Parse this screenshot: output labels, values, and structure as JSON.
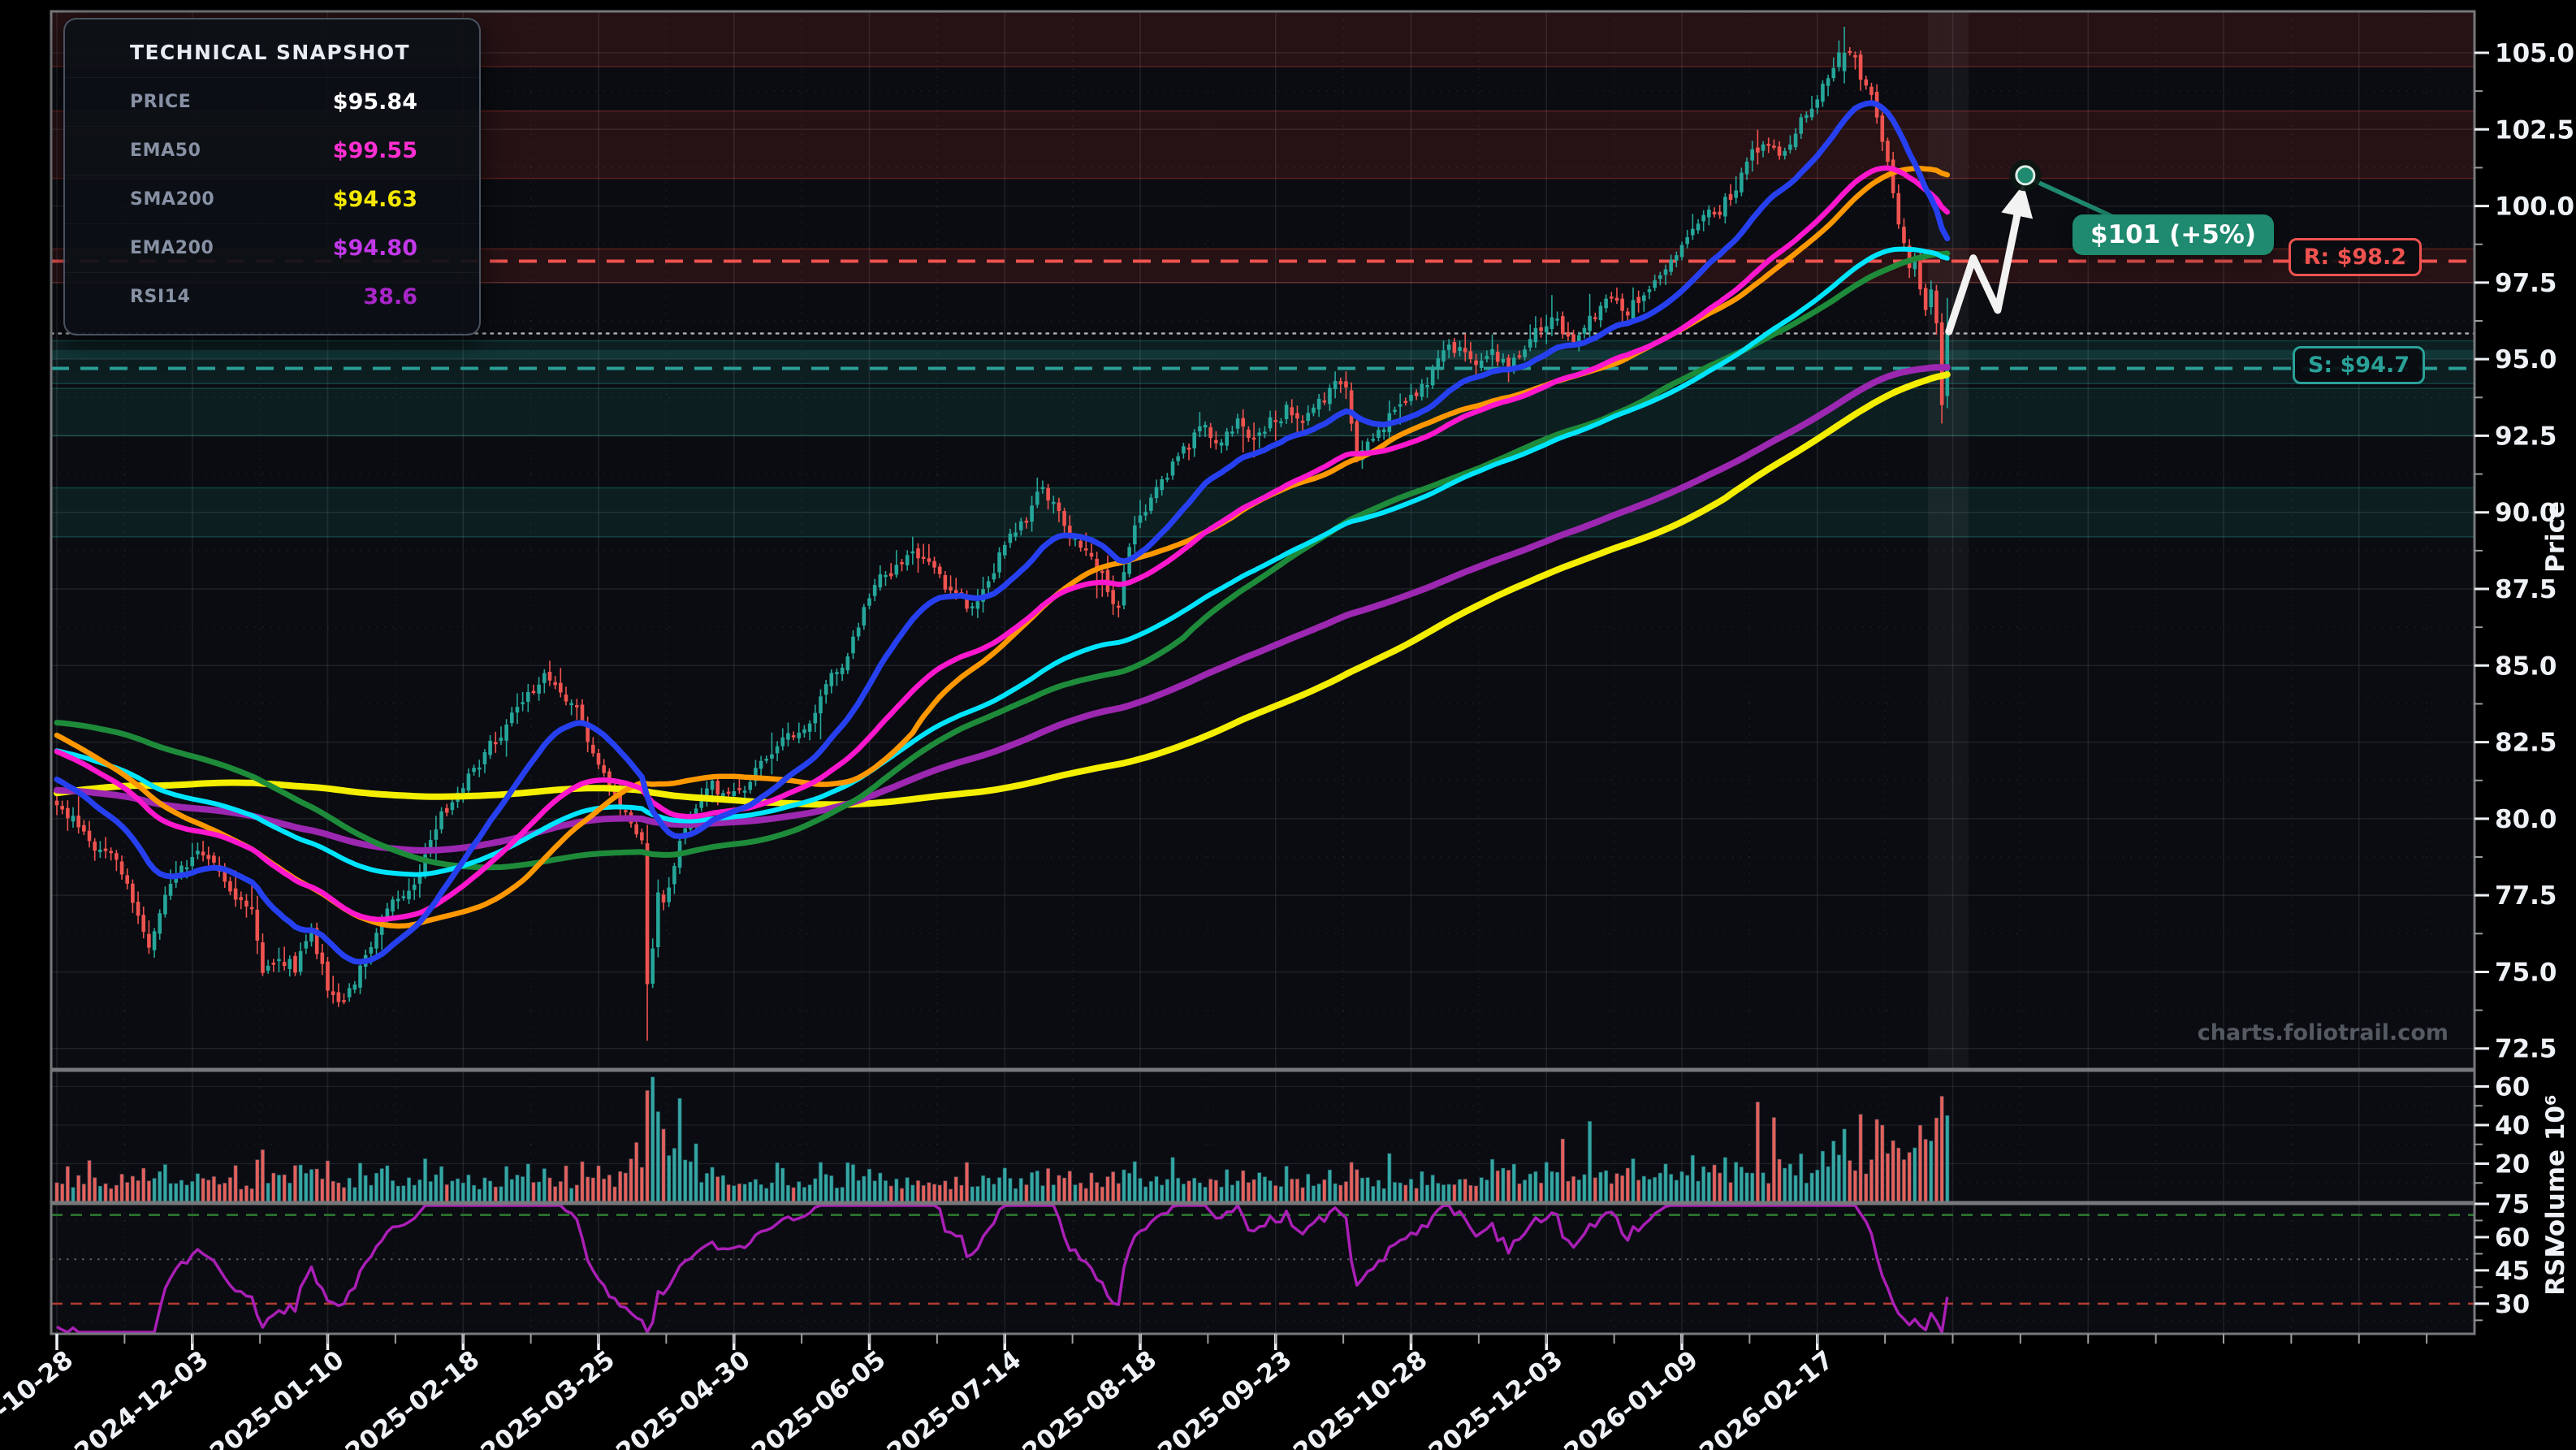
{
  "page": {
    "background": "#000000",
    "watermark": "charts.foliotrail.com"
  },
  "snapshot_panel": {
    "title": "TECHNICAL SNAPSHOT",
    "rows": [
      {
        "label": "PRICE",
        "value": "$95.84",
        "color": "#ffffff"
      },
      {
        "label": "EMA50",
        "value": "$99.55",
        "color": "#ff2fd2"
      },
      {
        "label": "SMA200",
        "value": "$94.63",
        "color": "#f4e800"
      },
      {
        "label": "EMA200",
        "value": "$94.80",
        "color": "#c238e8"
      },
      {
        "label": "RSI14",
        "value": "38.6",
        "color": "#a826c9"
      }
    ]
  },
  "chart_data": {
    "type": "candlestick",
    "days": 350,
    "x_tick_interval_days": 25,
    "x_tick_labels": [
      "2024-10-28",
      "2024-12-03",
      "2025-01-10",
      "2025-02-18",
      "2025-03-25",
      "2025-04-30",
      "2025-06-05",
      "2025-07-14",
      "2025-08-18",
      "2025-09-23",
      "2025-10-28",
      "2025-12-03",
      "2026-01-09",
      "2026-02-17"
    ],
    "price_axis": {
      "label": "Price",
      "ticks": [
        72.5,
        75.0,
        77.5,
        80.0,
        82.5,
        85.0,
        87.5,
        90.0,
        92.5,
        95.0,
        97.5,
        100.0,
        102.5,
        105.0
      ],
      "range": [
        71.8,
        106.4
      ]
    },
    "volume_axis": {
      "label": "Volume  10⁶",
      "ticks": [
        20,
        40,
        60
      ],
      "unit": "millions"
    },
    "rsi_axis": {
      "label": "RSI",
      "ticks": [
        30,
        45,
        60,
        75
      ],
      "guides": {
        "upper": 70,
        "mid": 50,
        "lower": 30
      }
    },
    "levels": {
      "resistance": {
        "label": "R: $98.2",
        "value": 98.2,
        "color": "#ef5350"
      },
      "support": {
        "label": "S: $94.7",
        "value": 94.7,
        "color": "#2aa198"
      },
      "current_price": {
        "value": 95.84,
        "color": "#d8d8d8"
      }
    },
    "zones": {
      "resistance": [
        {
          "from": 104.55,
          "to": 106.4
        },
        {
          "from": 100.9,
          "to": 103.1
        },
        {
          "from": 97.5,
          "to": 98.6
        }
      ],
      "support": [
        {
          "from": 94.2,
          "to": 95.6
        },
        {
          "from": 92.5,
          "to": 94.05
        },
        {
          "from": 89.2,
          "to": 90.8
        }
      ],
      "support_core": {
        "from": 95.0,
        "to": 95.3
      }
    },
    "projection": {
      "label": "$101 (+5%)",
      "target_price": 101,
      "color": "#1f8a70",
      "arrow_color": "#f2f2f2",
      "path_days_prices": [
        [
          349.3,
          95.9
        ],
        [
          353.8,
          98.3
        ],
        [
          358.3,
          96.6
        ],
        [
          362.6,
          100.3
        ]
      ],
      "marker_day": 363.4,
      "marker_price": 101
    },
    "indicators": [
      {
        "name": "SMA200",
        "type": "sma",
        "period": 200,
        "color": "#f4ee00",
        "width": 8
      },
      {
        "name": "EMA200",
        "type": "ema",
        "period": 200,
        "color": "#9c27b0",
        "width": 8
      },
      {
        "name": "SMA100",
        "type": "sma",
        "period": 100,
        "color": "#1e8b3a",
        "width": 7
      },
      {
        "name": "EMA100",
        "type": "ema",
        "period": 100,
        "color": "#00e5ff",
        "width": 6
      },
      {
        "name": "SMA50",
        "type": "sma",
        "period": 50,
        "color": "#ff9800",
        "width": 6.5
      },
      {
        "name": "EMA50",
        "type": "ema",
        "period": 50,
        "color": "#ff17ce",
        "width": 6.5
      },
      {
        "name": "EMA20",
        "type": "ema",
        "period": 20,
        "color": "#2640f0",
        "width": 7
      }
    ],
    "colors": {
      "plot_bg": "#0a0c11",
      "candle_up": "#26a69a",
      "candle_down": "#ef5350",
      "volume_up": "#35a7a2",
      "volume_down": "#e4615c",
      "rsi_line": "#a91fb5",
      "rsi_upper_guide": "#2e7d32",
      "rsi_mid_guide": "#9e9e9e",
      "rsi_lower_guide": "#b23b32",
      "spine": "#76787b",
      "tick_text": "#eef1f5",
      "zone_res_fill": "rgba(244,67,54,0.12)",
      "zone_res_edge": "rgba(244,67,54,0.30)",
      "zone_sup_fill": "rgba(38,166,154,0.12)",
      "zone_sup_edge": "rgba(38,166,154,0.30)",
      "zone_sup_core": "rgba(38,166,154,0.18)",
      "recent_highlight": "rgba(255,255,255,0.045)"
    },
    "series": {
      "seed": 42,
      "prehistory_anchors": [
        [
          0,
          74.5
        ],
        [
          160,
          85.2
        ],
        [
          209,
          80.4
        ]
      ],
      "price_anchors": [
        [
          0,
          80.2
        ],
        [
          3,
          79.9
        ],
        [
          6,
          79.6
        ],
        [
          9,
          78.9
        ],
        [
          12,
          78.0
        ],
        [
          15,
          77.0
        ],
        [
          17,
          76.2
        ],
        [
          20,
          77.6
        ],
        [
          23,
          78.2
        ],
        [
          26,
          78.9
        ],
        [
          29,
          78.6
        ],
        [
          32,
          77.8
        ],
        [
          34,
          77.5
        ],
        [
          36,
          77.2
        ],
        [
          38,
          74.9
        ],
        [
          41,
          75.8
        ],
        [
          44,
          75.2
        ],
        [
          47,
          76.4
        ],
        [
          50,
          74.6
        ],
        [
          53,
          74.1
        ],
        [
          55,
          74.8
        ],
        [
          58,
          75.6
        ],
        [
          62,
          77.2
        ],
        [
          66,
          78.3
        ],
        [
          70,
          79.6
        ],
        [
          74,
          81.0
        ],
        [
          78,
          81.8
        ],
        [
          82,
          82.6
        ],
        [
          86,
          83.6
        ],
        [
          90,
          84.6
        ],
        [
          93,
          84.0
        ],
        [
          96,
          83.2
        ],
        [
          99,
          82.0
        ],
        [
          102,
          80.8
        ],
        [
          105,
          80.0
        ],
        [
          108,
          79.3
        ],
        [
          110,
          75.6
        ],
        [
          111,
          77.3
        ],
        [
          112,
          77.0
        ],
        [
          114,
          78.6
        ],
        [
          116,
          79.6
        ],
        [
          118,
          80.3
        ],
        [
          121,
          81.0
        ],
        [
          124,
          80.5
        ],
        [
          126,
          80.9
        ],
        [
          130,
          81.7
        ],
        [
          134,
          82.5
        ],
        [
          138,
          83.3
        ],
        [
          142,
          84.2
        ],
        [
          146,
          85.6
        ],
        [
          149,
          86.8
        ],
        [
          152,
          87.6
        ],
        [
          155,
          88.3
        ],
        [
          158,
          88.9
        ],
        [
          162,
          88.2
        ],
        [
          165,
          87.4
        ],
        [
          168,
          86.9
        ],
        [
          171,
          87.8
        ],
        [
          174,
          88.6
        ],
        [
          177,
          89.3
        ],
        [
          180,
          90.2
        ],
        [
          182,
          90.8
        ],
        [
          185,
          90.0
        ],
        [
          188,
          89.2
        ],
        [
          191,
          88.3
        ],
        [
          194,
          87.4
        ],
        [
          196,
          87.0
        ],
        [
          198,
          89.0
        ],
        [
          200,
          90.0
        ],
        [
          203,
          90.8
        ],
        [
          206,
          91.5
        ],
        [
          209,
          92.2
        ],
        [
          212,
          92.9
        ],
        [
          215,
          92.3
        ],
        [
          218,
          92.9
        ],
        [
          221,
          92.4
        ],
        [
          224,
          93.0
        ],
        [
          227,
          93.4
        ],
        [
          230,
          93.0
        ],
        [
          233,
          93.6
        ],
        [
          236,
          94.0
        ],
        [
          238,
          94.2
        ],
        [
          240,
          91.7
        ],
        [
          242,
          92.3
        ],
        [
          245,
          93.0
        ],
        [
          248,
          93.6
        ],
        [
          251,
          94.1
        ],
        [
          254,
          94.6
        ],
        [
          256,
          95.1
        ],
        [
          259,
          95.4
        ],
        [
          262,
          94.8
        ],
        [
          265,
          95.3
        ],
        [
          268,
          94.9
        ],
        [
          271,
          95.5
        ],
        [
          274,
          95.9
        ],
        [
          277,
          96.2
        ],
        [
          280,
          95.6
        ],
        [
          283,
          96.3
        ],
        [
          286,
          96.9
        ],
        [
          289,
          96.4
        ],
        [
          292,
          97.0
        ],
        [
          295,
          97.5
        ],
        [
          298,
          98.0
        ],
        [
          301,
          98.5
        ],
        [
          304,
          99.2
        ],
        [
          307,
          99.9
        ],
        [
          310,
          100.6
        ],
        [
          313,
          101.6
        ],
        [
          316,
          101.9
        ],
        [
          318,
          101.4
        ],
        [
          320,
          102.2
        ],
        [
          323,
          103.2
        ],
        [
          326,
          104.1
        ],
        [
          328,
          104.5
        ],
        [
          330,
          105.0
        ],
        [
          332,
          104.6
        ],
        [
          334,
          103.9
        ],
        [
          336,
          102.9
        ],
        [
          338,
          101.2
        ],
        [
          340,
          99.4
        ],
        [
          342,
          97.8
        ],
        [
          343,
          98.2
        ],
        [
          344,
          97.3
        ],
        [
          345,
          96.6
        ],
        [
          346,
          97.0
        ],
        [
          347,
          96.2
        ],
        [
          348,
          93.6
        ],
        [
          349,
          95.84
        ]
      ],
      "ohlc_overrides": {
        "109": [
          79.2,
          79.8,
          72.75,
          74.6
        ],
        "330": [
          104.4,
          105.85,
          104.0,
          105.0
        ],
        "348": [
          96.2,
          96.5,
          92.9,
          93.5
        ],
        "349": [
          93.8,
          97.0,
          93.4,
          95.84
        ]
      },
      "volume_overrides": {
        "109": 58,
        "110": 65,
        "111": 47,
        "112": 38,
        "283": 42,
        "314": 52,
        "317": 44,
        "330": 38,
        "336": 43,
        "344": 40,
        "348": 55,
        "349": 45
      }
    }
  }
}
